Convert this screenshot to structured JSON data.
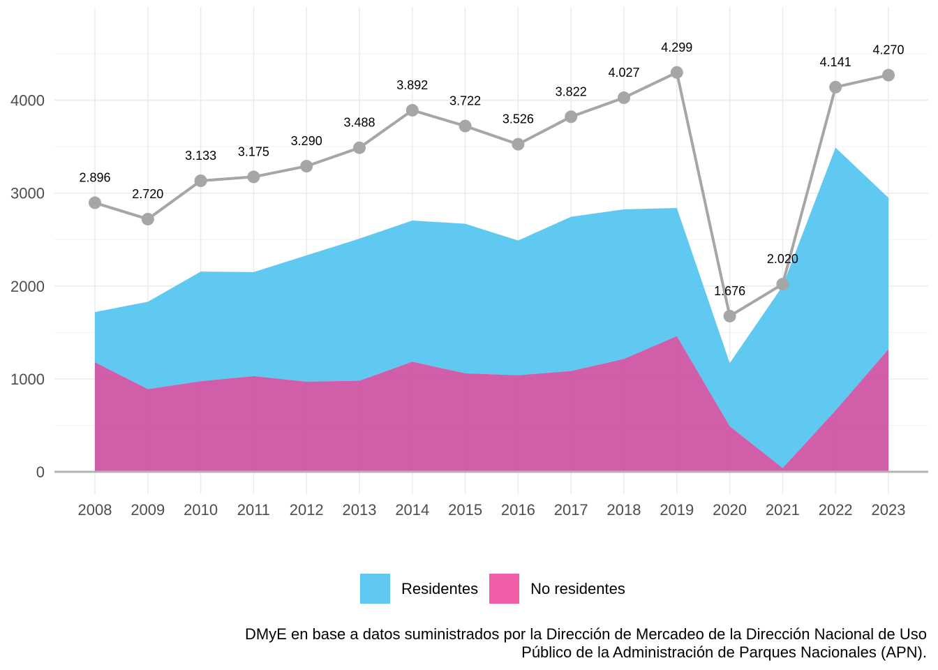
{
  "chart_data": {
    "type": "area",
    "x": [
      2008,
      2009,
      2010,
      2011,
      2012,
      2013,
      2014,
      2015,
      2016,
      2017,
      2018,
      2019,
      2020,
      2021,
      2022,
      2023
    ],
    "series": [
      {
        "name": "Residentes",
        "values": [
          540,
          940,
          1180,
          1120,
          1360,
          1530,
          1520,
          1610,
          1450,
          1660,
          1610,
          1380,
          680,
          1960,
          2830,
          1630
        ],
        "color": "#4fc3f0"
      },
      {
        "name": "No residentes",
        "values": [
          1180,
          890,
          975,
          1030,
          970,
          980,
          1185,
          1060,
          1040,
          1085,
          1215,
          1460,
          490,
          40,
          660,
          1320
        ],
        "color": "#cc4d9f"
      }
    ],
    "total_line": {
      "values": [
        2896,
        2720,
        3133,
        3175,
        3290,
        3488,
        3892,
        3722,
        3526,
        3822,
        4027,
        4299,
        1676,
        2020,
        4141,
        4270
      ],
      "labels": [
        "2.896",
        "2.720",
        "3.133",
        "3.175",
        "3.290",
        "3.488",
        "3.892",
        "3.722",
        "3.526",
        "3.822",
        "4.027",
        "4.299",
        "1.676",
        "2.020",
        "4.141",
        "4.270"
      ],
      "color": "#a6a6a6"
    },
    "y_ticks": [
      0,
      1000,
      2000,
      3000,
      4000
    ],
    "ylim": [
      -50,
      4900
    ],
    "grid": true,
    "legend_position": "bottom",
    "legend": {
      "residentes": "Residentes",
      "no_residentes": "No residentes",
      "residentes_color": "#5ec8f2",
      "no_residentes_color": "#ef5ea7"
    },
    "caption_line1": "DMyE en base a datos suministrados por la Dirección de Mercadeo de la Dirección Nacional de Uso",
    "caption_line2": "Público de la Administración de Parques Nacionales (APN)."
  }
}
